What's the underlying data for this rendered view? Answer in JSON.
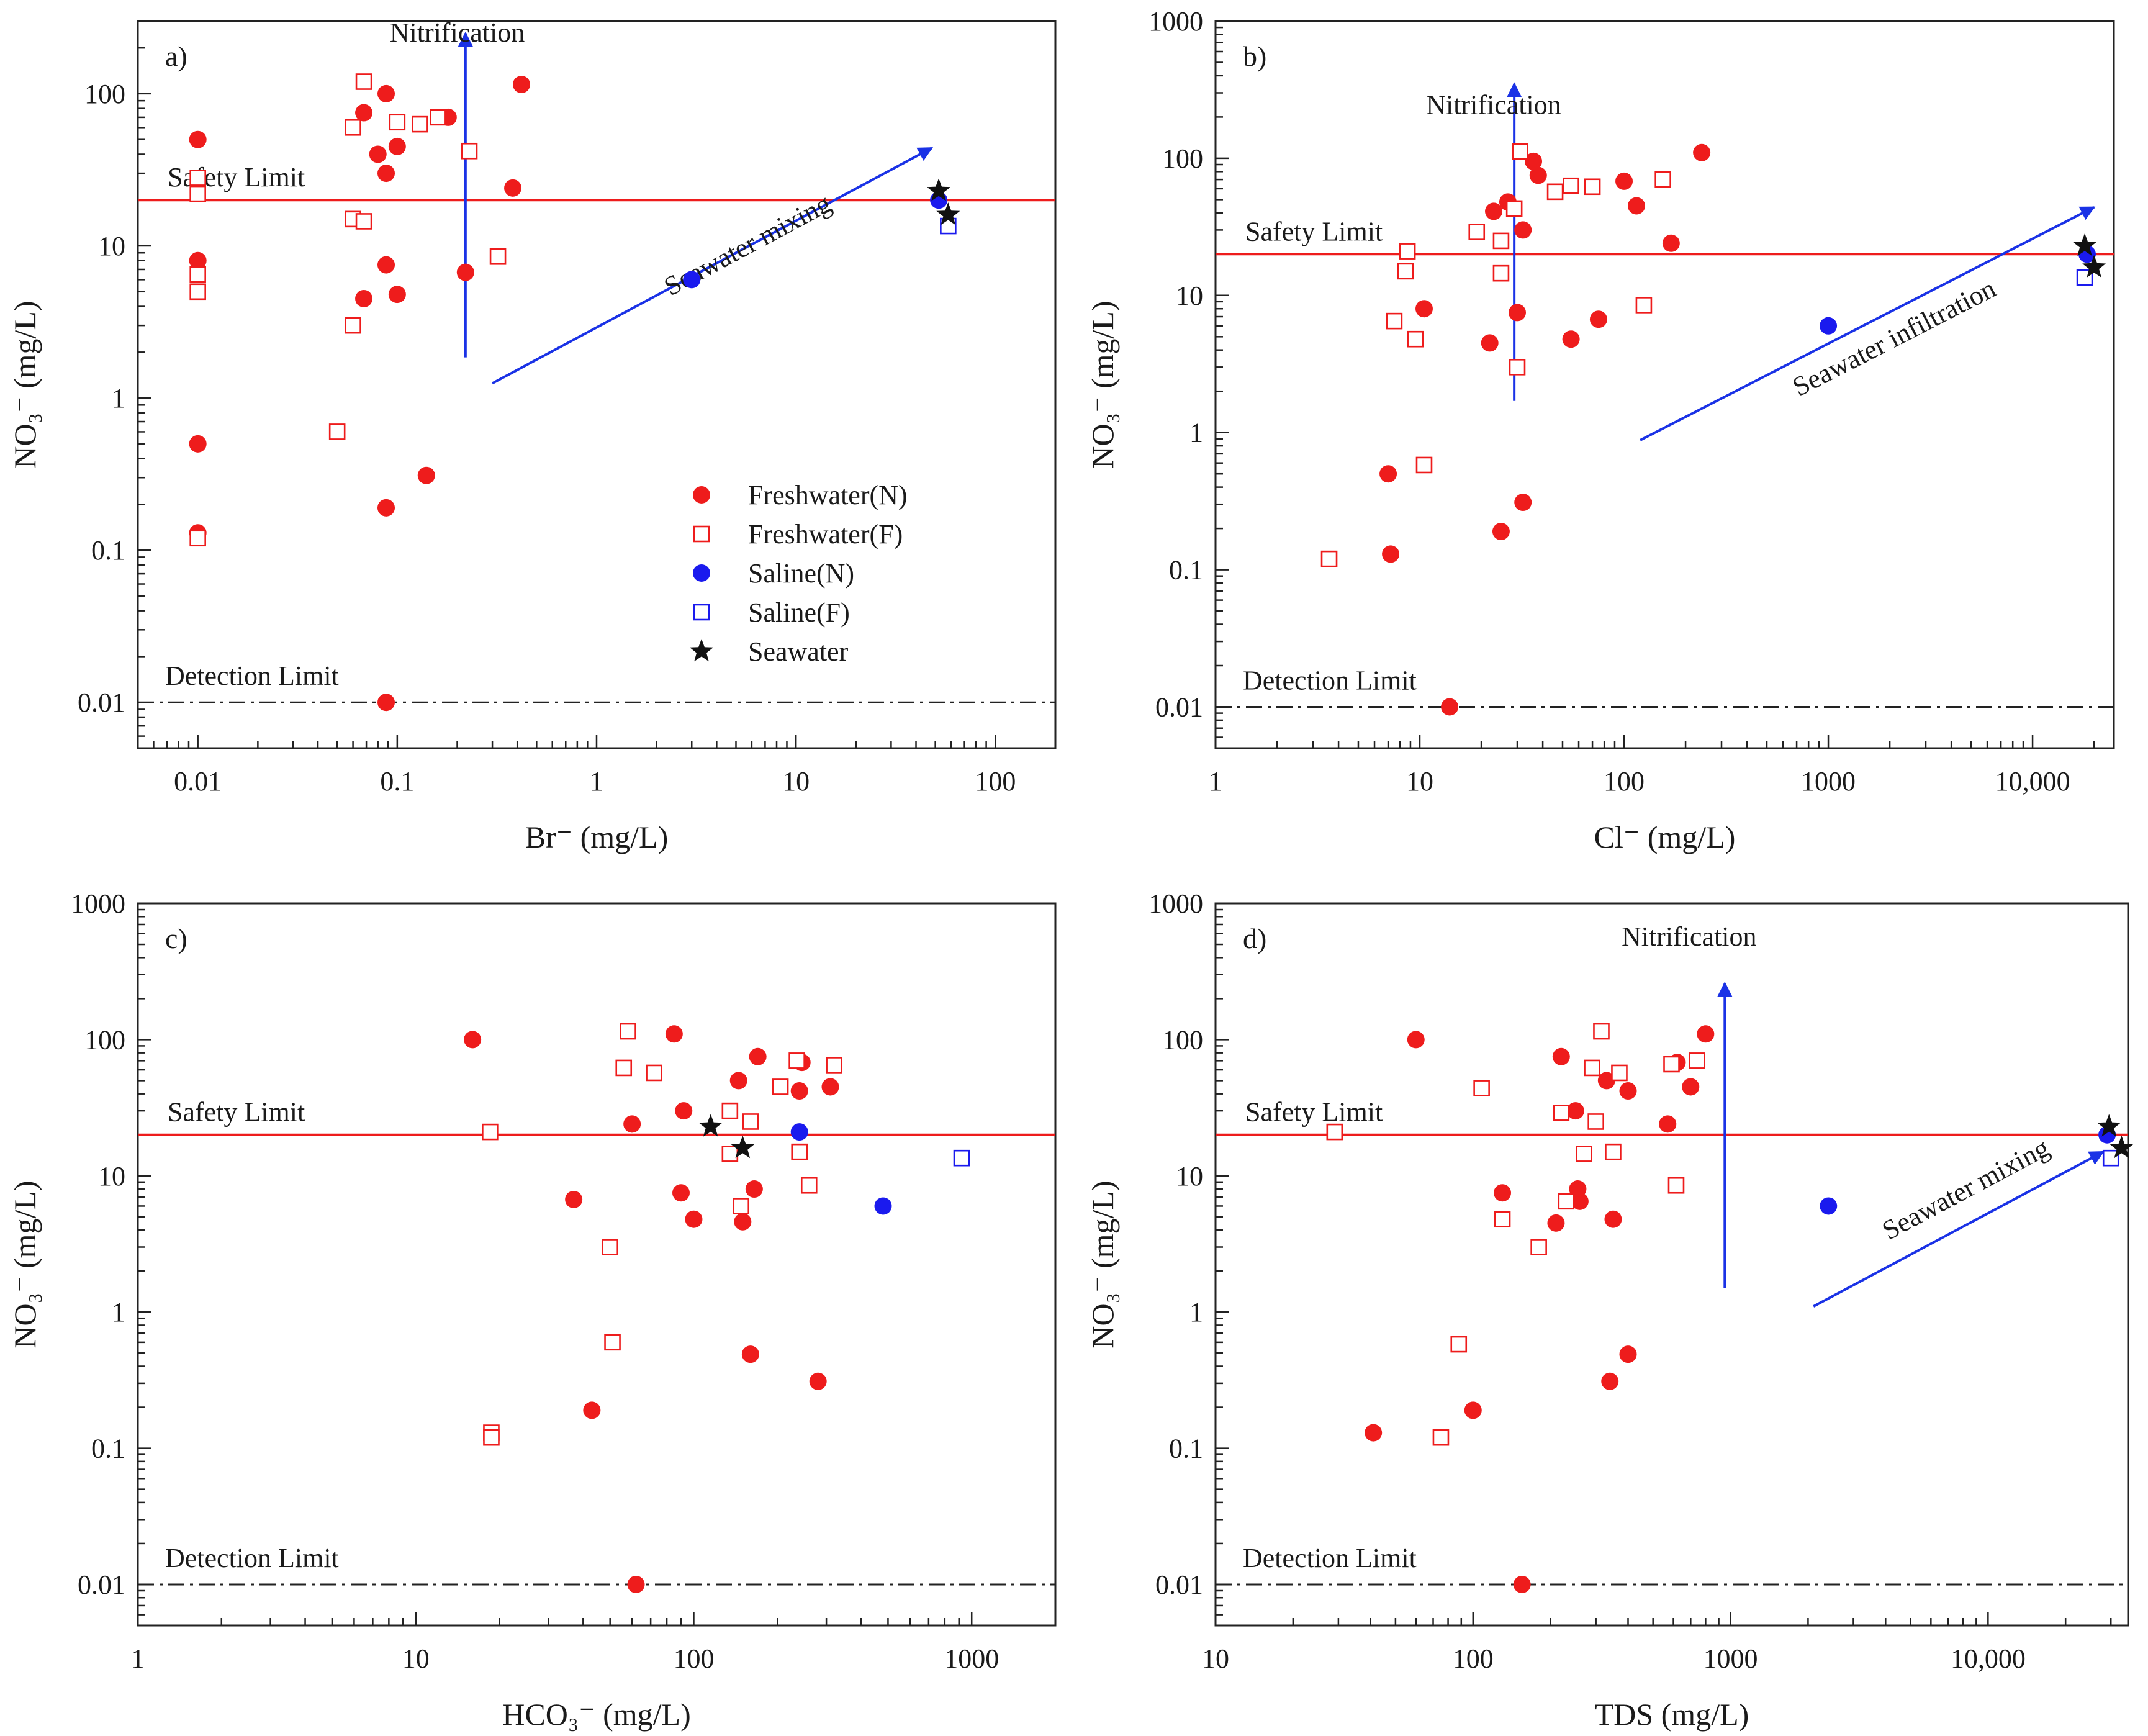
{
  "colors": {
    "freshwater": "#ee1c1c",
    "saline": "#1a1aee",
    "seawater": "#111111",
    "safety_line": "#ee1c1c",
    "arrow": "#1a32e6",
    "axis": "#222222"
  },
  "legend": [
    {
      "label": "Freshwater(N)",
      "marker": "filled-circle",
      "color": "#ee1c1c"
    },
    {
      "label": "Freshwater(F)",
      "marker": "open-square",
      "color": "#ee1c1c"
    },
    {
      "label": "Saline(N)",
      "marker": "filled-circle",
      "color": "#1a1aee"
    },
    {
      "label": "Saline(F)",
      "marker": "open-square",
      "color": "#1a1aee"
    },
    {
      "label": "Seawater",
      "marker": "star",
      "color": "#111111"
    }
  ],
  "chart_data": [
    {
      "type": "scatter",
      "panel": "a)",
      "xlabel": "Br⁻ (mg/L)",
      "ylabel": "NO₃⁻ (mg/L)",
      "xscale": "log",
      "yscale": "log",
      "xlim": [
        0.005,
        200
      ],
      "ylim": [
        0.005,
        300
      ],
      "xticks": [
        {
          "v": 0.01,
          "t": "0.01"
        },
        {
          "v": 0.1,
          "t": "0.1"
        },
        {
          "v": 1,
          "t": "1"
        },
        {
          "v": 10,
          "t": "10"
        },
        {
          "v": 100,
          "t": "100"
        }
      ],
      "yticks": [
        {
          "v": 0.01,
          "t": "0.01"
        },
        {
          "v": 0.1,
          "t": "0.1"
        },
        {
          "v": 1,
          "t": "1"
        },
        {
          "v": 10,
          "t": "10"
        },
        {
          "v": 100,
          "t": "100"
        }
      ],
      "safety_limit": {
        "value": 20,
        "label": "Safety Limit"
      },
      "detection_limit": {
        "value": 0.01,
        "label": "Detection Limit"
      },
      "series": [
        {
          "name": "Freshwater(N)",
          "points": [
            [
              0.01,
              50
            ],
            [
              0.01,
              8
            ],
            [
              0.01,
              0.5
            ],
            [
              0.01,
              0.13
            ],
            [
              0.068,
              75
            ],
            [
              0.08,
              40
            ],
            [
              0.088,
              100
            ],
            [
              0.088,
              30
            ],
            [
              0.088,
              7.5
            ],
            [
              0.1,
              45
            ],
            [
              0.068,
              4.5
            ],
            [
              0.1,
              4.8
            ],
            [
              0.18,
              70
            ],
            [
              0.22,
              6.7
            ],
            [
              0.38,
              24
            ],
            [
              0.42,
              115
            ],
            [
              0.14,
              0.31
            ],
            [
              0.088,
              0.19
            ],
            [
              0.088,
              0.01
            ]
          ]
        },
        {
          "name": "Freshwater(F)",
          "points": [
            [
              0.01,
              28
            ],
            [
              0.01,
              22
            ],
            [
              0.01,
              6.5
            ],
            [
              0.01,
              5
            ],
            [
              0.01,
              0.12
            ],
            [
              0.068,
              120
            ],
            [
              0.06,
              60
            ],
            [
              0.1,
              65
            ],
            [
              0.13,
              63
            ],
            [
              0.16,
              70
            ],
            [
              0.23,
              42
            ],
            [
              0.06,
              15
            ],
            [
              0.068,
              14.5
            ],
            [
              0.06,
              3
            ],
            [
              0.05,
              0.6
            ],
            [
              0.32,
              8.5
            ]
          ]
        },
        {
          "name": "Saline(N)",
          "points": [
            [
              3,
              6
            ],
            [
              52,
              20
            ]
          ]
        },
        {
          "name": "Saline(F)",
          "points": [
            [
              58,
              13.5
            ]
          ]
        },
        {
          "name": "Seawater",
          "points": [
            [
              52,
              23
            ],
            [
              58,
              16
            ]
          ]
        }
      ],
      "arrows": [
        {
          "label": "Nitrification",
          "from": [
            0.22,
            1.85
          ],
          "to": [
            0.22,
            250
          ],
          "label_at": [
            0.2,
            220
          ],
          "rotate": false
        },
        {
          "label": "Seawater mixing",
          "from": [
            0.3,
            1.25
          ],
          "to": [
            48,
            44
          ],
          "label_at": [
            6,
            9
          ],
          "rotate": true
        }
      ]
    },
    {
      "type": "scatter",
      "panel": "b)",
      "xlabel": "Cl⁻ (mg/L)",
      "ylabel": "NO₃⁻ (mg/L)",
      "xscale": "log",
      "yscale": "log",
      "xlim": [
        1,
        25000
      ],
      "ylim": [
        0.005,
        1000
      ],
      "xticks": [
        {
          "v": 1,
          "t": "1"
        },
        {
          "v": 10,
          "t": "10"
        },
        {
          "v": 100,
          "t": "100"
        },
        {
          "v": 1000,
          "t": "1000"
        },
        {
          "v": 10000,
          "t": "10,000"
        }
      ],
      "yticks": [
        {
          "v": 0.01,
          "t": "0.01"
        },
        {
          "v": 0.1,
          "t": "0.1"
        },
        {
          "v": 1,
          "t": "1"
        },
        {
          "v": 10,
          "t": "10"
        },
        {
          "v": 100,
          "t": "100"
        },
        {
          "v": 1000,
          "t": "1000"
        }
      ],
      "safety_limit": {
        "value": 20,
        "label": "Safety Limit"
      },
      "detection_limit": {
        "value": 0.01,
        "label": "Detection Limit"
      },
      "series": [
        {
          "name": "Freshwater(N)",
          "points": [
            [
              7,
              0.5
            ],
            [
              7.2,
              0.13
            ],
            [
              10.5,
              8
            ],
            [
              14,
              0.01
            ],
            [
              22,
              4.5
            ],
            [
              23,
              41
            ],
            [
              25,
              0.19
            ],
            [
              27,
              48
            ],
            [
              30,
              7.5
            ],
            [
              32,
              30
            ],
            [
              32,
              0.31
            ],
            [
              36,
              95
            ],
            [
              38,
              75
            ],
            [
              55,
              4.8
            ],
            [
              75,
              6.7
            ],
            [
              100,
              68
            ],
            [
              115,
              45
            ],
            [
              170,
              24
            ],
            [
              240,
              110
            ]
          ]
        },
        {
          "name": "Freshwater(F)",
          "points": [
            [
              3.6,
              0.12
            ],
            [
              7.5,
              6.5
            ],
            [
              8.5,
              15
            ],
            [
              8.7,
              21
            ],
            [
              9.5,
              4.8
            ],
            [
              10.5,
              0.58
            ],
            [
              19,
              29
            ],
            [
              25,
              25
            ],
            [
              25,
              14.5
            ],
            [
              29,
              43
            ],
            [
              31,
              112
            ],
            [
              30,
              3
            ],
            [
              46,
              57
            ],
            [
              55,
              63
            ],
            [
              70,
              62
            ],
            [
              125,
              8.5
            ],
            [
              155,
              70
            ]
          ]
        },
        {
          "name": "Saline(N)",
          "points": [
            [
              1000,
              6
            ],
            [
              18500,
              20
            ]
          ]
        },
        {
          "name": "Saline(F)",
          "points": [
            [
              18000,
              13.5
            ]
          ]
        },
        {
          "name": "Seawater",
          "points": [
            [
              18000,
              23
            ],
            [
              20000,
              16
            ]
          ]
        }
      ],
      "arrows": [
        {
          "label": "Nitrification",
          "from": [
            29,
            1.7
          ],
          "to": [
            29,
            350
          ],
          "label_at": [
            23,
            210
          ],
          "rotate": false
        },
        {
          "label": "Seawater infiltration",
          "from": [
            120,
            0.88
          ],
          "to": [
            20000,
            44
          ],
          "label_at": [
            2200,
            4.3
          ],
          "rotate": true
        }
      ]
    },
    {
      "type": "scatter",
      "panel": "c)",
      "xlabel": "HCO₃⁻ (mg/L)",
      "ylabel": "NO₃⁻ (mg/L)",
      "xscale": "log",
      "yscale": "log",
      "xlim": [
        1,
        2000
      ],
      "ylim": [
        0.005,
        1000
      ],
      "xticks": [
        {
          "v": 1,
          "t": "1"
        },
        {
          "v": 10,
          "t": "10"
        },
        {
          "v": 100,
          "t": "100"
        },
        {
          "v": 1000,
          "t": "1000"
        }
      ],
      "yticks": [
        {
          "v": 0.01,
          "t": "0.01"
        },
        {
          "v": 0.1,
          "t": "0.1"
        },
        {
          "v": 1,
          "t": "1"
        },
        {
          "v": 10,
          "t": "10"
        },
        {
          "v": 100,
          "t": "100"
        },
        {
          "v": 1000,
          "t": "1000"
        }
      ],
      "safety_limit": {
        "value": 20,
        "label": "Safety Limit"
      },
      "detection_limit": {
        "value": 0.01,
        "label": "Detection Limit"
      },
      "series": [
        {
          "name": "Freshwater(N)",
          "points": [
            [
              16,
              100
            ],
            [
              37,
              6.7
            ],
            [
              43,
              0.19
            ],
            [
              60,
              24
            ],
            [
              62,
              0.01
            ],
            [
              85,
              110
            ],
            [
              92,
              30
            ],
            [
              90,
              7.5
            ],
            [
              100,
              4.8
            ],
            [
              145,
              50
            ],
            [
              150,
              4.6
            ],
            [
              165,
              8
            ],
            [
              170,
              75
            ],
            [
              160,
              0.49
            ],
            [
              240,
              42
            ],
            [
              245,
              68
            ],
            [
              280,
              0.31
            ],
            [
              310,
              45
            ]
          ]
        },
        {
          "name": "Freshwater(F)",
          "points": [
            [
              18.5,
              21
            ],
            [
              18.7,
              0.13
            ],
            [
              18.7,
              0.12
            ],
            [
              50,
              3
            ],
            [
              51,
              0.6
            ],
            [
              56,
              62
            ],
            [
              58,
              115
            ],
            [
              72,
              57
            ],
            [
              135,
              30
            ],
            [
              135,
              14.5
            ],
            [
              148,
              6
            ],
            [
              160,
              25
            ],
            [
              205,
              45
            ],
            [
              235,
              70
            ],
            [
              240,
              15
            ],
            [
              260,
              8.5
            ],
            [
              320,
              65
            ]
          ]
        },
        {
          "name": "Saline(N)",
          "points": [
            [
              240,
              21
            ],
            [
              480,
              6
            ]
          ]
        },
        {
          "name": "Saline(F)",
          "points": [
            [
              920,
              13.5
            ]
          ]
        },
        {
          "name": "Seawater",
          "points": [
            [
              115,
              23
            ],
            [
              150,
              16
            ]
          ]
        }
      ],
      "arrows": []
    },
    {
      "type": "scatter",
      "panel": "d)",
      "xlabel": "TDS (mg/L)",
      "ylabel": "NO₃⁻ (mg/L)",
      "xscale": "log",
      "yscale": "log",
      "xlim": [
        10,
        35000
      ],
      "ylim": [
        0.005,
        1000
      ],
      "xticks": [
        {
          "v": 10,
          "t": "10"
        },
        {
          "v": 100,
          "t": "100"
        },
        {
          "v": 1000,
          "t": "1000"
        },
        {
          "v": 10000,
          "t": "10,000"
        }
      ],
      "yticks": [
        {
          "v": 0.01,
          "t": "0.01"
        },
        {
          "v": 0.1,
          "t": "0.1"
        },
        {
          "v": 1,
          "t": "1"
        },
        {
          "v": 10,
          "t": "10"
        },
        {
          "v": 100,
          "t": "100"
        },
        {
          "v": 1000,
          "t": "1000"
        }
      ],
      "safety_limit": {
        "value": 20,
        "label": "Safety Limit"
      },
      "detection_limit": {
        "value": 0.01,
        "label": "Detection Limit"
      },
      "series": [
        {
          "name": "Freshwater(N)",
          "points": [
            [
              41,
              0.13
            ],
            [
              60,
              100
            ],
            [
              100,
              0.19
            ],
            [
              130,
              7.5
            ],
            [
              155,
              0.01
            ],
            [
              210,
              4.5
            ],
            [
              220,
              75
            ],
            [
              250,
              30
            ],
            [
              255,
              8
            ],
            [
              260,
              6.5
            ],
            [
              330,
              50
            ],
            [
              340,
              0.31
            ],
            [
              350,
              4.8
            ],
            [
              400,
              42
            ],
            [
              400,
              0.49
            ],
            [
              570,
              24
            ],
            [
              620,
              68
            ],
            [
              700,
              45
            ],
            [
              800,
              110
            ]
          ]
        },
        {
          "name": "Freshwater(F)",
          "points": [
            [
              29,
              21
            ],
            [
              75,
              0.12
            ],
            [
              88,
              0.58
            ],
            [
              108,
              44
            ],
            [
              130,
              4.8
            ],
            [
              180,
              3
            ],
            [
              220,
              29
            ],
            [
              230,
              6.5
            ],
            [
              270,
              14.5
            ],
            [
              290,
              62
            ],
            [
              300,
              25
            ],
            [
              315,
              115
            ],
            [
              350,
              15
            ],
            [
              370,
              57
            ],
            [
              590,
              66
            ],
            [
              615,
              8.5
            ],
            [
              740,
              70
            ]
          ]
        },
        {
          "name": "Saline(N)",
          "points": [
            [
              2400,
              6
            ],
            [
              29000,
              20
            ]
          ]
        },
        {
          "name": "Saline(F)",
          "points": [
            [
              30000,
              13.5
            ]
          ]
        },
        {
          "name": "Seawater",
          "points": [
            [
              29500,
              23
            ],
            [
              33000,
              16
            ]
          ]
        }
      ],
      "arrows": [
        {
          "label": "Nitrification",
          "from": [
            950,
            1.5
          ],
          "to": [
            950,
            260
          ],
          "label_at": [
            690,
            490
          ],
          "rotate": false
        },
        {
          "label": "Seawater mixing",
          "from": [
            2100,
            1.1
          ],
          "to": [
            28000,
            15
          ],
          "label_at": [
            8500,
            7
          ],
          "rotate": true
        }
      ]
    }
  ]
}
